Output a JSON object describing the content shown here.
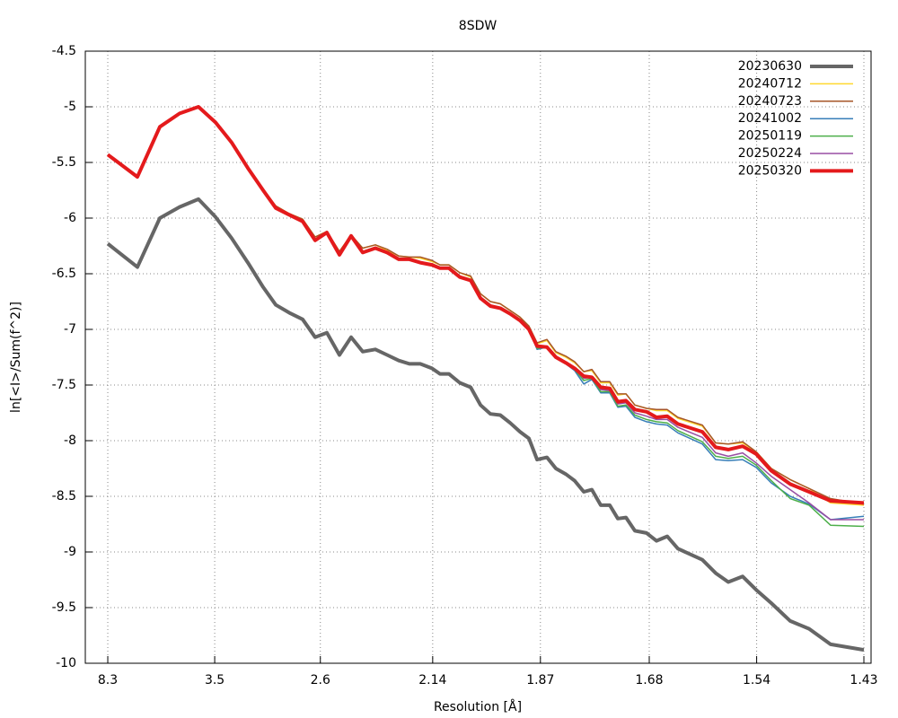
{
  "chart_data": {
    "type": "line",
    "title": "8SDW",
    "x_label": "Resolution [Å]",
    "y_label": "ln[<I>/Sum(f^2)]",
    "grid": true,
    "legend": "upper right",
    "xlim": [
      0.0004,
      0.4935
    ],
    "ylim": [
      -10.0,
      -4.5
    ],
    "xticks": [
      {
        "value": 0.0145,
        "label": "8.3"
      },
      {
        "value": 0.0816,
        "label": "3.5"
      },
      {
        "value": 0.1479,
        "label": "2.6"
      },
      {
        "value": 0.2184,
        "label": "2.14"
      },
      {
        "value": 0.286,
        "label": "1.87"
      },
      {
        "value": 0.3543,
        "label": "1.68"
      },
      {
        "value": 0.4217,
        "label": "1.54"
      },
      {
        "value": 0.489,
        "label": "1.43"
      }
    ],
    "yticks": [
      -4.5,
      -5.0,
      -5.5,
      -6.0,
      -6.5,
      -7.0,
      -7.5,
      -8.0,
      -8.5,
      -9.0,
      -9.5,
      -10.0
    ],
    "x": [
      0.0145,
      0.0331,
      0.0472,
      0.0596,
      0.0714,
      0.0821,
      0.0922,
      0.1024,
      0.112,
      0.1199,
      0.1283,
      0.1368,
      0.1446,
      0.152,
      0.1599,
      0.1672,
      0.1745,
      0.1824,
      0.1898,
      0.1971,
      0.2038,
      0.2106,
      0.2179,
      0.223,
      0.2286,
      0.2354,
      0.2422,
      0.2484,
      0.2546,
      0.2608,
      0.267,
      0.2732,
      0.2788,
      0.2839,
      0.2901,
      0.2957,
      0.3019,
      0.3075,
      0.3132,
      0.3183,
      0.3239,
      0.3295,
      0.3346,
      0.3397,
      0.3453,
      0.3526,
      0.3588,
      0.3656,
      0.3723,
      0.3876,
      0.396,
      0.4039,
      0.4129,
      0.4214,
      0.4309,
      0.4428,
      0.4546,
      0.4681,
      0.489
    ],
    "series": [
      {
        "name": "20230630",
        "color": "#666666",
        "line_width": 4,
        "values": [
          -6.23,
          -6.44,
          -6.0,
          -5.9,
          -5.83,
          -5.99,
          -6.18,
          -6.4,
          -6.62,
          -6.78,
          -6.85,
          -6.91,
          -7.07,
          -7.03,
          -7.23,
          -7.07,
          -7.2,
          -7.18,
          -7.23,
          -7.28,
          -7.31,
          -7.31,
          -7.35,
          -7.4,
          -7.4,
          -7.48,
          -7.52,
          -7.68,
          -7.76,
          -7.77,
          -7.84,
          -7.92,
          -7.98,
          -8.17,
          -8.15,
          -8.25,
          -8.3,
          -8.36,
          -8.46,
          -8.44,
          -8.58,
          -8.58,
          -8.7,
          -8.69,
          -8.81,
          -8.83,
          -8.9,
          -8.86,
          -8.97,
          -9.07,
          -9.19,
          -9.27,
          -9.22,
          -9.34,
          -9.46,
          -9.62,
          -9.69,
          -9.83,
          -9.88
        ]
      },
      {
        "name": "20240712",
        "color": "#ffd92f",
        "line_width": 1.5,
        "values": [
          -5.43,
          -5.63,
          -5.18,
          -5.06,
          -5.0,
          -5.14,
          -5.32,
          -5.54,
          -5.74,
          -5.89,
          -5.96,
          -6.01,
          -6.17,
          -6.12,
          -6.3,
          -6.15,
          -6.27,
          -6.24,
          -6.29,
          -6.34,
          -6.35,
          -6.36,
          -6.39,
          -6.42,
          -6.42,
          -6.49,
          -6.53,
          -6.68,
          -6.75,
          -6.77,
          -6.83,
          -6.89,
          -6.97,
          -7.13,
          -7.1,
          -7.21,
          -7.25,
          -7.3,
          -7.38,
          -7.37,
          -7.48,
          -7.48,
          -7.59,
          -7.58,
          -7.68,
          -7.71,
          -7.73,
          -7.73,
          -7.8,
          -7.87,
          -8.02,
          -8.03,
          -8.02,
          -8.1,
          -8.25,
          -8.35,
          -8.43,
          -8.56,
          -8.58
        ]
      },
      {
        "name": "20240723",
        "color": "#a65628",
        "line_width": 1.5,
        "values": [
          -5.43,
          -5.63,
          -5.18,
          -5.06,
          -5.0,
          -5.14,
          -5.32,
          -5.54,
          -5.74,
          -5.89,
          -5.96,
          -6.01,
          -6.17,
          -6.12,
          -6.3,
          -6.15,
          -6.27,
          -6.24,
          -6.28,
          -6.34,
          -6.35,
          -6.35,
          -6.38,
          -6.42,
          -6.42,
          -6.49,
          -6.52,
          -6.68,
          -6.75,
          -6.77,
          -6.83,
          -6.89,
          -6.97,
          -7.12,
          -7.09,
          -7.2,
          -7.24,
          -7.29,
          -7.38,
          -7.36,
          -7.47,
          -7.47,
          -7.58,
          -7.58,
          -7.68,
          -7.71,
          -7.72,
          -7.72,
          -7.79,
          -7.86,
          -8.02,
          -8.03,
          -8.01,
          -8.1,
          -8.25,
          -8.35,
          -8.43,
          -8.52,
          -8.57
        ]
      },
      {
        "name": "20241002",
        "color": "#377eb8",
        "line_width": 1.5,
        "values": [
          -5.43,
          -5.63,
          -5.18,
          -5.06,
          -5.0,
          -5.14,
          -5.32,
          -5.55,
          -5.75,
          -5.91,
          -5.97,
          -6.03,
          -6.2,
          -6.13,
          -6.33,
          -6.16,
          -6.31,
          -6.27,
          -6.31,
          -6.37,
          -6.37,
          -6.4,
          -6.42,
          -6.45,
          -6.45,
          -6.53,
          -6.56,
          -6.72,
          -6.79,
          -6.81,
          -6.86,
          -6.92,
          -7.0,
          -7.18,
          -7.16,
          -7.26,
          -7.31,
          -7.37,
          -7.49,
          -7.45,
          -7.57,
          -7.57,
          -7.7,
          -7.69,
          -7.79,
          -7.83,
          -7.85,
          -7.86,
          -7.93,
          -8.03,
          -8.17,
          -8.18,
          -8.17,
          -8.24,
          -8.38,
          -8.5,
          -8.57,
          -8.71,
          -8.68
        ]
      },
      {
        "name": "20250119",
        "color": "#4daf4a",
        "line_width": 1.5,
        "values": [
          -5.43,
          -5.63,
          -5.18,
          -5.06,
          -5.0,
          -5.14,
          -5.32,
          -5.55,
          -5.75,
          -5.91,
          -5.97,
          -6.03,
          -6.2,
          -6.13,
          -6.33,
          -6.16,
          -6.31,
          -6.27,
          -6.31,
          -6.37,
          -6.37,
          -6.4,
          -6.42,
          -6.45,
          -6.45,
          -6.53,
          -6.56,
          -6.72,
          -6.79,
          -6.81,
          -6.86,
          -6.92,
          -7.0,
          -7.17,
          -7.16,
          -7.25,
          -7.3,
          -7.36,
          -7.46,
          -7.44,
          -7.56,
          -7.56,
          -7.69,
          -7.68,
          -7.77,
          -7.81,
          -7.83,
          -7.84,
          -7.91,
          -8.01,
          -8.14,
          -8.16,
          -8.14,
          -8.22,
          -8.36,
          -8.52,
          -8.58,
          -8.76,
          -8.77
        ]
      },
      {
        "name": "20250224",
        "color": "#984ea3",
        "line_width": 1.5,
        "values": [
          -5.43,
          -5.63,
          -5.18,
          -5.06,
          -5.0,
          -5.14,
          -5.32,
          -5.55,
          -5.75,
          -5.91,
          -5.97,
          -6.03,
          -6.2,
          -6.13,
          -6.33,
          -6.16,
          -6.31,
          -6.27,
          -6.31,
          -6.37,
          -6.37,
          -6.4,
          -6.42,
          -6.45,
          -6.45,
          -6.53,
          -6.56,
          -6.72,
          -6.79,
          -6.81,
          -6.86,
          -6.92,
          -7.0,
          -7.16,
          -7.15,
          -7.24,
          -7.29,
          -7.35,
          -7.44,
          -7.43,
          -7.54,
          -7.55,
          -7.67,
          -7.66,
          -7.75,
          -7.78,
          -7.81,
          -7.81,
          -7.88,
          -7.97,
          -8.11,
          -8.14,
          -8.11,
          -8.2,
          -8.32,
          -8.44,
          -8.56,
          -8.71,
          -8.71
        ]
      },
      {
        "name": "20250320",
        "color": "#e41a1c",
        "line_width": 4,
        "values": [
          -5.43,
          -5.63,
          -5.18,
          -5.06,
          -5.0,
          -5.14,
          -5.32,
          -5.55,
          -5.75,
          -5.91,
          -5.97,
          -6.03,
          -6.2,
          -6.13,
          -6.33,
          -6.16,
          -6.31,
          -6.27,
          -6.31,
          -6.37,
          -6.37,
          -6.4,
          -6.42,
          -6.45,
          -6.45,
          -6.53,
          -6.56,
          -6.72,
          -6.79,
          -6.81,
          -6.86,
          -6.92,
          -7.0,
          -7.15,
          -7.16,
          -7.25,
          -7.3,
          -7.35,
          -7.42,
          -7.43,
          -7.52,
          -7.53,
          -7.65,
          -7.64,
          -7.72,
          -7.74,
          -7.79,
          -7.78,
          -7.85,
          -7.92,
          -8.06,
          -8.08,
          -8.05,
          -8.12,
          -8.27,
          -8.39,
          -8.46,
          -8.54,
          -8.56
        ]
      }
    ]
  }
}
